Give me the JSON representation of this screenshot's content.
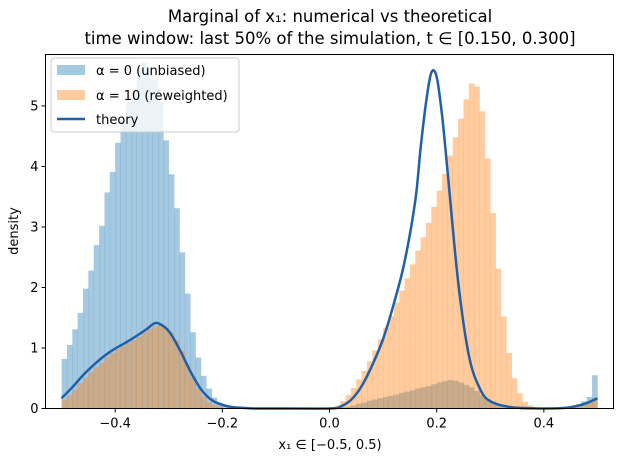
{
  "chart_data": {
    "type": "histogram",
    "title_line1": "Marginal of x₁: numerical vs theoretical",
    "title_line2": "time window: last 50% of the simulation, t ∈ [0.150, 0.300]",
    "xlabel": "x₁ ∈ [−0.5, 0.5)",
    "ylabel": "density",
    "xlim": [
      -0.53,
      0.53
    ],
    "ylim": [
      0,
      5.85
    ],
    "xticks": [
      -0.4,
      -0.2,
      0.0,
      0.2,
      0.4
    ],
    "xtick_labels": [
      "−0.4",
      "−0.2",
      "0.0",
      "0.2",
      "0.4"
    ],
    "yticks": [
      0,
      1,
      2,
      3,
      4,
      5
    ],
    "ytick_labels": [
      "0",
      "1",
      "2",
      "3",
      "4",
      "5"
    ],
    "bin_edges_range": [
      -0.5,
      0.5
    ],
    "bin_count": 100,
    "legend": {
      "position": "top-left",
      "entries": [
        "α = 0 (unbiased)",
        "α = 10 (reweighted)",
        "theory"
      ]
    },
    "series": [
      {
        "name": "α = 0 (unbiased)",
        "kind": "hist",
        "color": "#1f77b4",
        "alpha": 0.4,
        "values": [
          0.82,
          1.05,
          1.31,
          1.58,
          1.98,
          2.28,
          2.7,
          3.02,
          3.57,
          3.91,
          4.39,
          4.76,
          5.06,
          5.28,
          5.62,
          5.72,
          5.58,
          5.44,
          5.07,
          4.43,
          3.87,
          3.31,
          2.58,
          1.9,
          1.26,
          0.84,
          0.54,
          0.33,
          0.18,
          0.1,
          0.05,
          0.02,
          0.01,
          0,
          0,
          0,
          0,
          0,
          0,
          0,
          0,
          0,
          0,
          0,
          0,
          0,
          0,
          0,
          0,
          0,
          0,
          0.01,
          0.02,
          0.03,
          0.05,
          0.08,
          0.1,
          0.13,
          0.15,
          0.17,
          0.19,
          0.21,
          0.23,
          0.26,
          0.28,
          0.3,
          0.33,
          0.35,
          0.37,
          0.4,
          0.43,
          0.45,
          0.47,
          0.46,
          0.43,
          0.39,
          0.35,
          0.29,
          0.22,
          0.16,
          0.11,
          0.07,
          0.04,
          0.02,
          0.01,
          0,
          0,
          0,
          0,
          0,
          0,
          0,
          0,
          0,
          0,
          0.03,
          0.07,
          0.12,
          0.19,
          0.55
        ]
      },
      {
        "name": "α = 10 (reweighted)",
        "kind": "hist",
        "color": "#ff7f0e",
        "alpha": 0.4,
        "values": [
          0.15,
          0.22,
          0.31,
          0.42,
          0.51,
          0.6,
          0.68,
          0.76,
          0.85,
          0.92,
          0.98,
          1.03,
          1.08,
          1.13,
          1.19,
          1.26,
          1.32,
          1.36,
          1.38,
          1.33,
          1.26,
          1.13,
          0.95,
          0.73,
          0.51,
          0.33,
          0.2,
          0.11,
          0.06,
          0.03,
          0.01,
          0,
          0,
          0,
          0,
          0,
          0,
          0,
          0,
          0,
          0,
          0,
          0,
          0,
          0,
          0,
          0,
          0,
          0,
          0,
          0.01,
          0.05,
          0.12,
          0.22,
          0.34,
          0.48,
          0.62,
          0.78,
          0.96,
          1.14,
          1.33,
          1.53,
          1.75,
          1.95,
          2.15,
          2.38,
          2.61,
          2.83,
          3.07,
          3.33,
          3.6,
          3.88,
          4.18,
          4.48,
          4.79,
          5.11,
          5.37,
          5.32,
          4.91,
          4.13,
          3.23,
          2.31,
          1.52,
          0.92,
          0.5,
          0.25,
          0.11,
          0.05,
          0.02,
          0.01,
          0,
          0,
          0,
          0,
          0.01,
          0.02,
          0.04,
          0.07,
          0.11,
          0.17
        ]
      },
      {
        "name": "theory",
        "kind": "line",
        "color": "#1f60a8",
        "x": [
          -0.5,
          -0.48,
          -0.46,
          -0.44,
          -0.42,
          -0.4,
          -0.38,
          -0.36,
          -0.34,
          -0.33,
          -0.32,
          -0.3,
          -0.28,
          -0.26,
          -0.24,
          -0.22,
          -0.2,
          -0.18,
          -0.16,
          -0.14,
          -0.1,
          0.0,
          0.02,
          0.04,
          0.06,
          0.08,
          0.1,
          0.12,
          0.14,
          0.16,
          0.17,
          0.18,
          0.19,
          0.2,
          0.21,
          0.22,
          0.24,
          0.26,
          0.28,
          0.3,
          0.34,
          0.4,
          0.44,
          0.46,
          0.48,
          0.5
        ],
        "y": [
          0.17,
          0.35,
          0.55,
          0.72,
          0.87,
          0.99,
          1.09,
          1.2,
          1.32,
          1.39,
          1.41,
          1.28,
          0.98,
          0.62,
          0.32,
          0.14,
          0.06,
          0.02,
          0.01,
          0.0,
          0.0,
          0.0,
          0.03,
          0.14,
          0.37,
          0.72,
          1.15,
          1.73,
          2.42,
          3.43,
          4.3,
          5.05,
          5.55,
          5.48,
          4.85,
          3.95,
          2.1,
          0.88,
          0.34,
          0.12,
          0.02,
          0.0,
          0.01,
          0.04,
          0.09,
          0.17
        ]
      }
    ]
  }
}
